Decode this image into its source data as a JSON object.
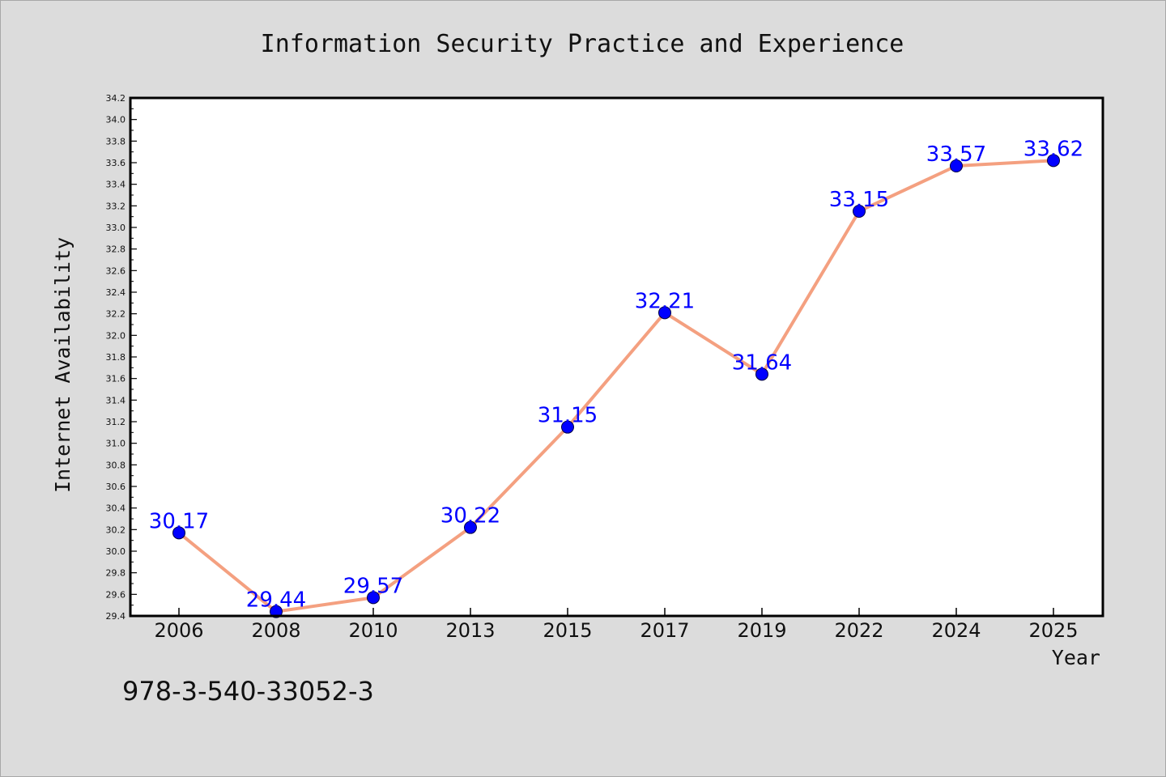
{
  "chart_data": {
    "type": "line",
    "title": "Information Security Practice and Experience",
    "xlabel": "Year",
    "ylabel": "Internet Availability",
    "categories": [
      "2006",
      "2008",
      "2010",
      "2013",
      "2015",
      "2017",
      "2019",
      "2022",
      "2024",
      "2025"
    ],
    "series": [
      {
        "values": [
          30.17,
          29.44,
          29.57,
          30.22,
          31.15,
          32.21,
          31.64,
          33.15,
          33.57,
          33.62
        ],
        "labels": [
          "30.17",
          "29.44",
          "29.57",
          "30.22",
          "31.15",
          "32.21",
          "31.64",
          "33.15",
          "33.57",
          "33.62"
        ],
        "line_color": "#f4a080",
        "marker_color": "#0000ff",
        "label_color": "#0000ff"
      }
    ],
    "ylim": [
      29.4,
      34.2
    ],
    "ytick_step": 0.2,
    "ytick_labels": [
      "29.4",
      "29.6",
      "29.8",
      "30.0",
      "30.2",
      "30.4",
      "30.6",
      "30.8",
      "31.0",
      "31.2",
      "31.4",
      "31.6",
      "31.8",
      "32.0",
      "32.2",
      "32.4",
      "32.6",
      "32.8",
      "33.0",
      "33.2",
      "33.4",
      "33.6",
      "33.8",
      "34.0",
      "34.2"
    ],
    "grid": false,
    "legend": "none",
    "background": "#dcdcdc",
    "plot_background": "#ffffff"
  },
  "footer": {
    "isbn": "978-3-540-33052-3"
  }
}
